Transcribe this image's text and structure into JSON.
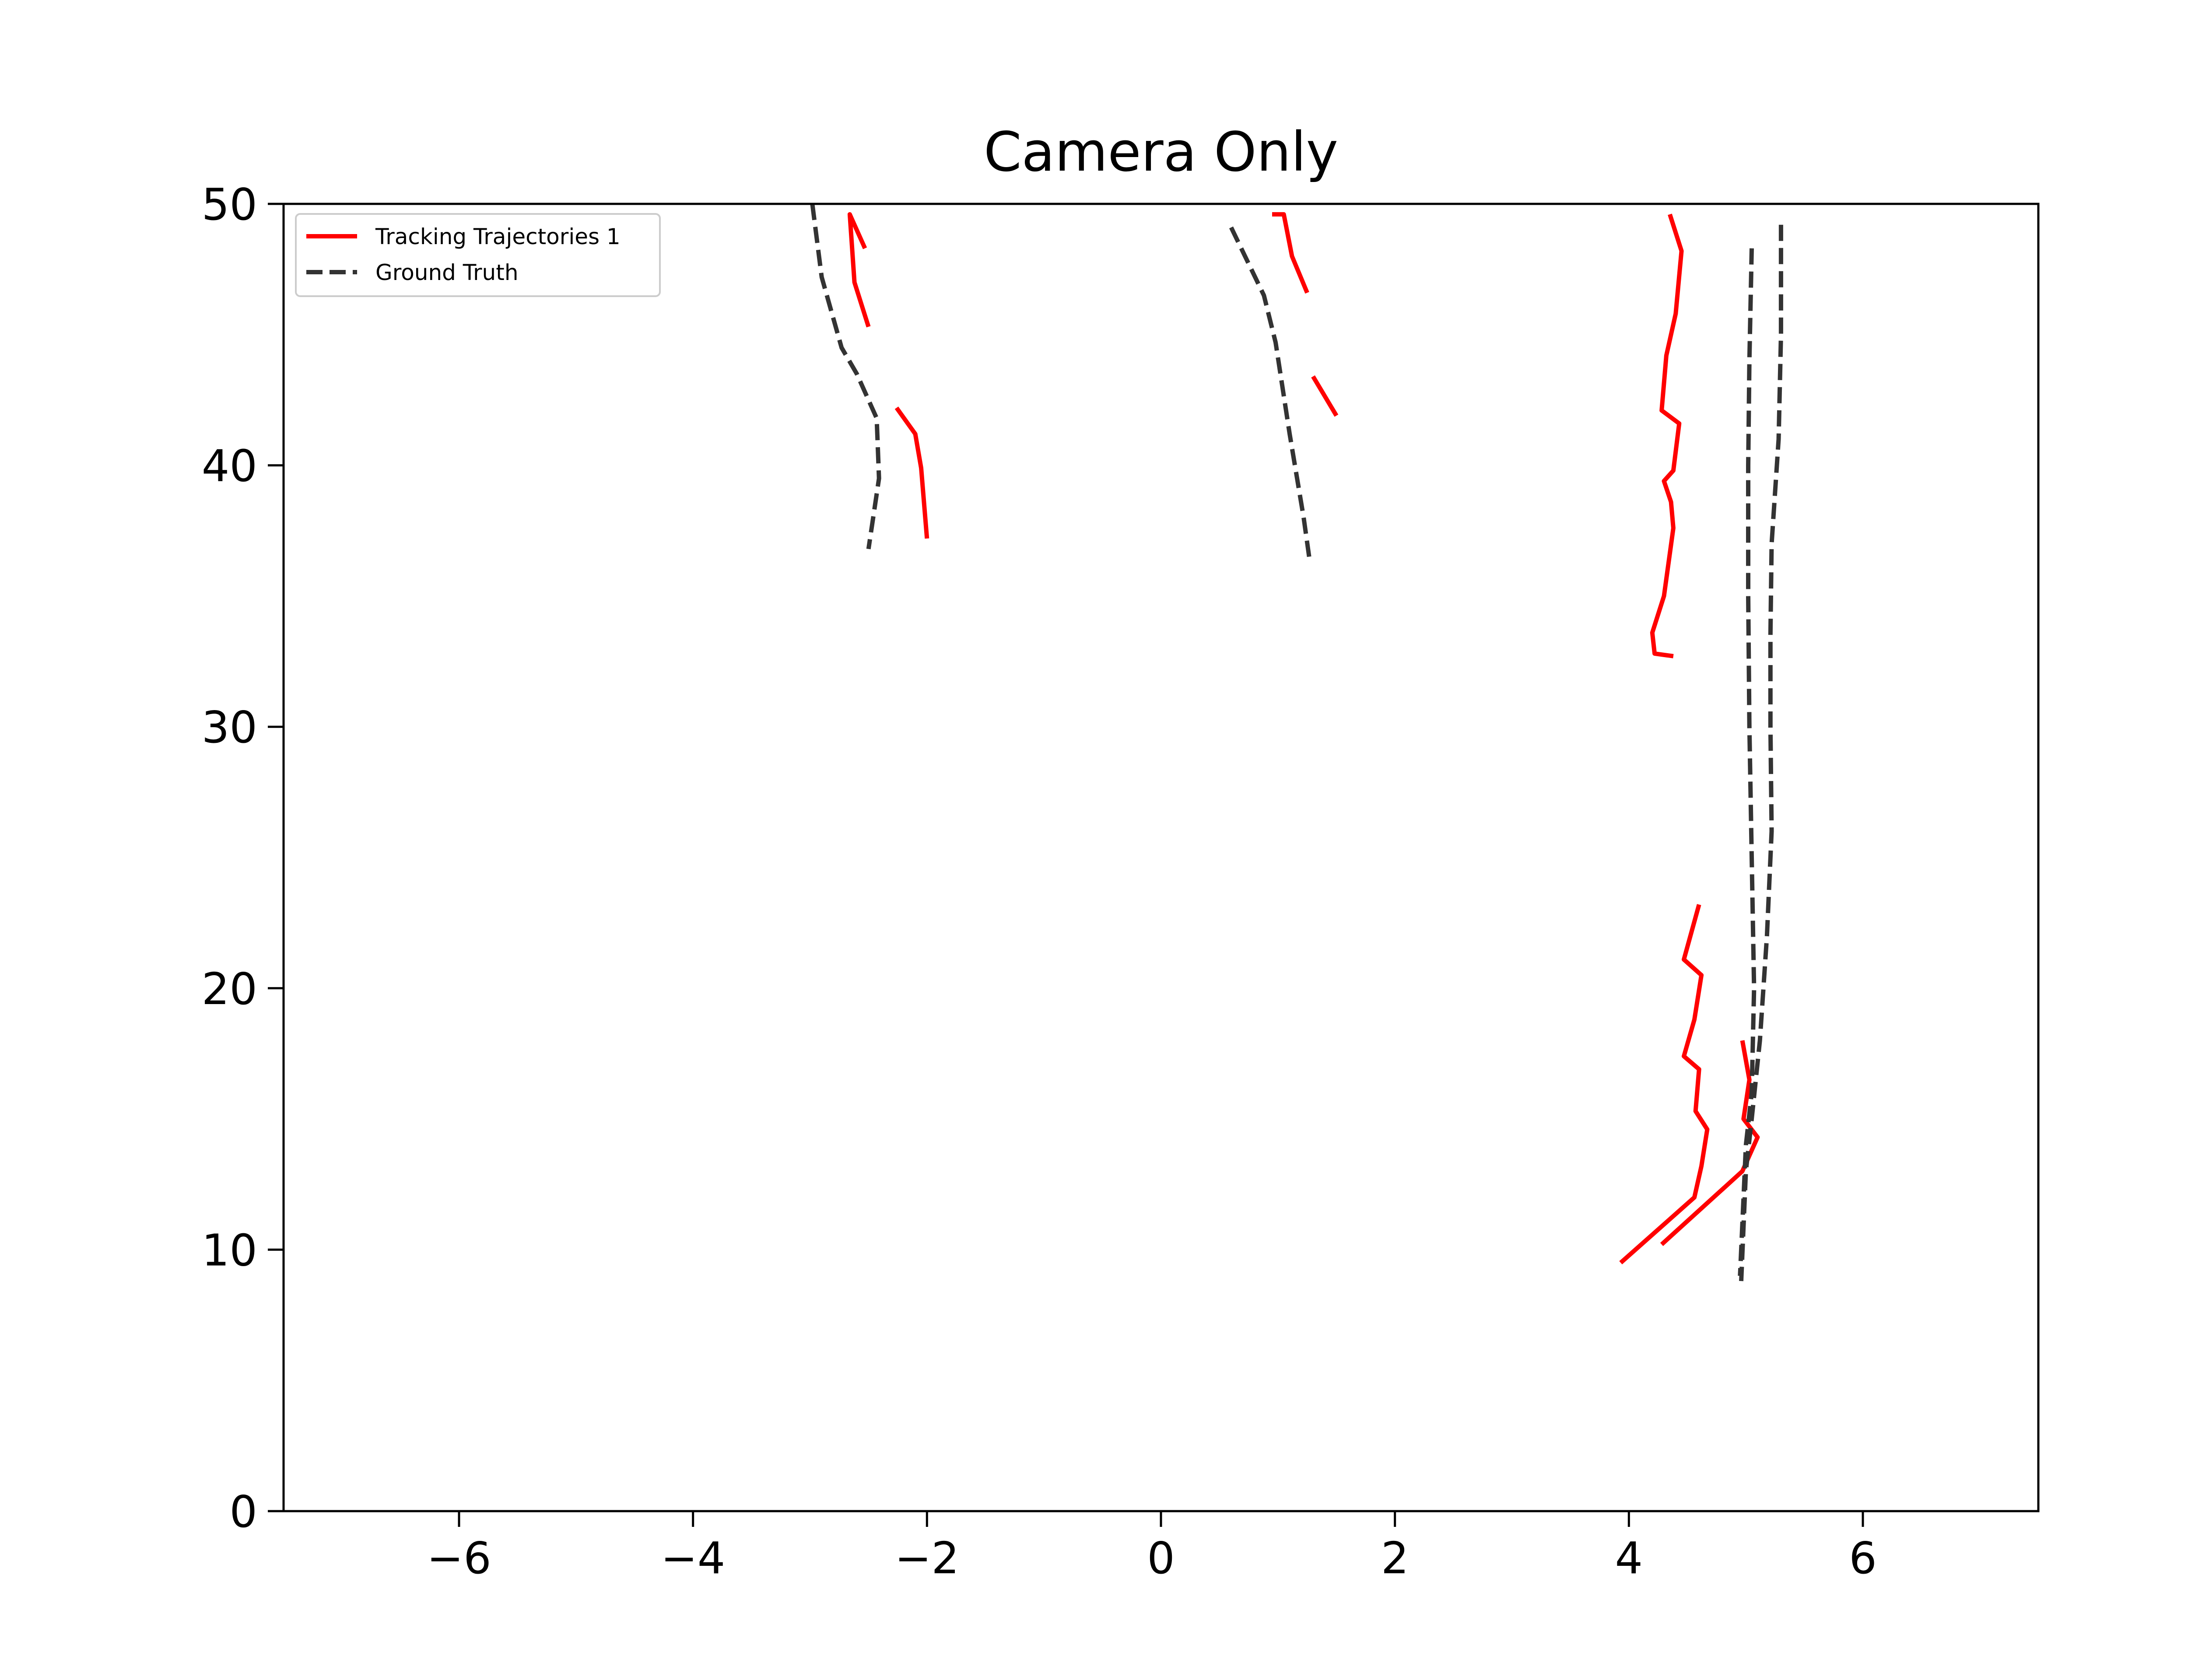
{
  "chart_data": {
    "type": "line",
    "title": "Camera Only",
    "xlabel": "",
    "ylabel": "",
    "xlim": [
      -7.5,
      7.5
    ],
    "ylim": [
      0,
      50
    ],
    "xticks": [
      -6,
      -4,
      -2,
      0,
      2,
      4,
      6
    ],
    "xtick_labels": [
      "−6",
      "−4",
      "−2",
      "0",
      "2",
      "4",
      "6"
    ],
    "yticks": [
      0,
      10,
      20,
      30,
      40,
      50
    ],
    "ytick_labels": [
      "0",
      "10",
      "20",
      "30",
      "40",
      "50"
    ],
    "grid": false,
    "legend": {
      "position": "top-left",
      "entries": [
        {
          "label": "Tracking Trajectories 1",
          "color": "#ff0000",
          "style": "solid"
        },
        {
          "label": "Ground Truth",
          "color": "#333333",
          "style": "dashed"
        }
      ]
    },
    "series": [
      {
        "legend_index": 0,
        "color": "#ff0000",
        "style": "solid",
        "segments": [
          [
            [
              -2.53,
              48.3
            ],
            [
              -2.66,
              49.6
            ],
            [
              -2.62,
              47.0
            ],
            [
              -2.5,
              45.3
            ]
          ],
          [
            [
              -2.26,
              42.2
            ],
            [
              -2.1,
              41.2
            ],
            [
              -2.05,
              39.9
            ],
            [
              -2.0,
              37.2
            ]
          ],
          [
            [
              0.95,
              49.6
            ],
            [
              1.05,
              49.6
            ],
            [
              1.12,
              48.0
            ],
            [
              1.25,
              46.6
            ]
          ],
          [
            [
              1.3,
              43.4
            ],
            [
              1.5,
              41.9
            ]
          ],
          [
            [
              4.35,
              49.6
            ],
            [
              4.45,
              48.2
            ],
            [
              4.4,
              45.8
            ],
            [
              4.32,
              44.2
            ],
            [
              4.28,
              42.1
            ],
            [
              4.43,
              41.6
            ],
            [
              4.38,
              39.8
            ],
            [
              4.3,
              39.4
            ],
            [
              4.36,
              38.6
            ],
            [
              4.38,
              37.6
            ],
            [
              4.3,
              35.0
            ],
            [
              4.2,
              33.6
            ],
            [
              4.22,
              32.8
            ],
            [
              4.38,
              32.7
            ]
          ],
          [
            [
              4.6,
              23.2
            ],
            [
              4.47,
              21.1
            ],
            [
              4.62,
              20.5
            ],
            [
              4.56,
              18.8
            ],
            [
              4.47,
              17.4
            ],
            [
              4.6,
              16.9
            ],
            [
              4.57,
              15.3
            ],
            [
              4.67,
              14.6
            ],
            [
              4.62,
              13.2
            ],
            [
              4.56,
              12.0
            ],
            [
              3.93,
              9.5
            ]
          ],
          [
            [
              4.97,
              18.0
            ],
            [
              5.03,
              16.5
            ],
            [
              4.98,
              15.0
            ],
            [
              5.1,
              14.3
            ],
            [
              4.97,
              13.0
            ],
            [
              4.28,
              10.2
            ]
          ]
        ]
      },
      {
        "legend_index": 1,
        "color": "#333333",
        "style": "dashed",
        "segments": [
          [
            [
              -2.98,
              50.0
            ],
            [
              -2.9,
              47.2
            ],
            [
              -2.73,
              44.5
            ],
            [
              -2.6,
              43.5
            ],
            [
              -2.43,
              41.8
            ],
            [
              -2.41,
              39.5
            ],
            [
              -2.5,
              36.8
            ]
          ],
          [
            [
              0.6,
              49.1
            ],
            [
              0.88,
              46.5
            ],
            [
              0.98,
              44.7
            ],
            [
              1.1,
              41.2
            ],
            [
              1.22,
              38.0
            ],
            [
              1.27,
              36.4
            ]
          ],
          [
            [
              5.05,
              48.3
            ],
            [
              5.03,
              44.0
            ],
            [
              5.02,
              40.0
            ],
            [
              5.02,
              35.0
            ],
            [
              5.03,
              30.0
            ],
            [
              5.05,
              25.0
            ],
            [
              5.07,
              20.0
            ],
            [
              5.05,
              16.0
            ],
            [
              5.0,
              14.0
            ],
            [
              4.95,
              9.0
            ]
          ],
          [
            [
              5.3,
              49.2
            ],
            [
              5.3,
              45.0
            ],
            [
              5.28,
              41.0
            ],
            [
              5.22,
              37.0
            ],
            [
              5.21,
              33.5
            ],
            [
              5.21,
              30.0
            ],
            [
              5.22,
              26.0
            ],
            [
              5.18,
              22.0
            ],
            [
              5.12,
              18.0
            ],
            [
              5.05,
              15.0
            ],
            [
              5.0,
              13.0
            ],
            [
              4.96,
              8.8
            ]
          ]
        ]
      }
    ]
  }
}
